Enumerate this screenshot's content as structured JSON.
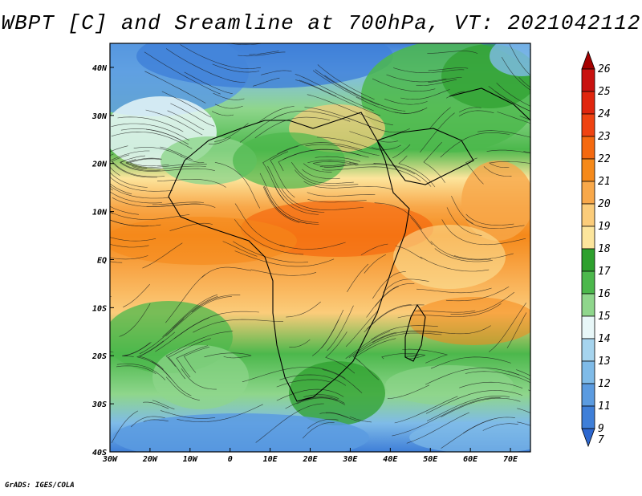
{
  "title": "WBPT [C] and Sreamline at 700hPa, VT: 2021042112",
  "credit": "GrADS: IGES/COLA",
  "map": {
    "variable": "Wet Bulb Potential Temperature",
    "units": "C",
    "level": "700hPa",
    "valid_time": "2021042112",
    "lon_range": [
      -30,
      75
    ],
    "lat_range": [
      -40,
      45
    ],
    "x_tick_labels": [
      "30W",
      "20W",
      "10W",
      "0",
      "10E",
      "20E",
      "30E",
      "40E",
      "50E",
      "60E",
      "70E"
    ],
    "y_tick_labels": [
      "40N",
      "30N",
      "20N",
      "10N",
      "EQ",
      "10S",
      "20S",
      "30S",
      "40S"
    ]
  },
  "colorbar": {
    "labels": [
      "26",
      "25",
      "24",
      "23",
      "22",
      "21",
      "20",
      "19",
      "18",
      "17",
      "16",
      "15",
      "14",
      "13",
      "12",
      "11",
      "9",
      "7"
    ],
    "colors": [
      "#a50000",
      "#c8120f",
      "#e0260e",
      "#ef4311",
      "#f5690f",
      "#f5891a",
      "#f8a84a",
      "#fbcc7a",
      "#fce59c",
      "#2da02d",
      "#4cb84c",
      "#8fd68c",
      "#e8f7f8",
      "#a6d4ee",
      "#7fbbe8",
      "#5b9be0",
      "#3f7fd8",
      "#2d67cf"
    ]
  }
}
